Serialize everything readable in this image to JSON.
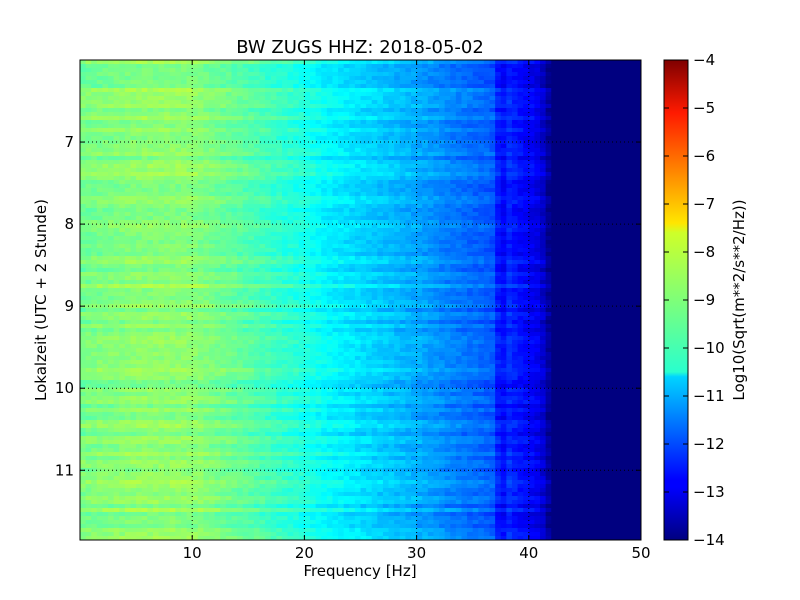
{
  "chart_data": {
    "type": "heatmap",
    "title": "BW ZUGS HHZ: 2018-05-02",
    "xlabel": "Frequency [Hz]",
    "ylabel": "Lokalzeit (UTC + 2 Stunde)",
    "colorbar_label": "Log10(Sqrt(m**2/s**2/Hz))",
    "xlim": [
      0,
      50
    ],
    "ylim": [
      6.0,
      11.85
    ],
    "y_inverted": true,
    "xticks": [
      10,
      20,
      30,
      40,
      50
    ],
    "yticks": [
      7,
      8,
      9,
      10,
      11
    ],
    "xtick_labels": [
      "10",
      "20",
      "30",
      "40",
      "50"
    ],
    "ytick_labels": [
      "7",
      "8",
      "9",
      "10",
      "11"
    ],
    "colorbar_ticks": [
      -4,
      -5,
      -6,
      -7,
      -8,
      -9,
      -10,
      -11,
      -12,
      -13,
      -14
    ],
    "colorbar_tick_labels": [
      "−4",
      "−5",
      "−6",
      "−7",
      "−8",
      "−9",
      "−10",
      "−11",
      "−12",
      "−13",
      "−14"
    ],
    "color_range": [
      -14,
      -4
    ],
    "colormap": "jet",
    "grid": true,
    "frequency_profile": {
      "x": [
        0,
        5,
        10,
        15,
        20,
        22,
        25,
        28,
        30,
        33,
        35,
        37,
        38,
        39,
        40,
        41,
        42,
        50
      ],
      "z": [
        -9.1,
        -8.9,
        -8.9,
        -9.4,
        -10.0,
        -10.3,
        -10.6,
        -10.9,
        -11.1,
        -11.5,
        -11.7,
        -11.9,
        -12.3,
        -12.6,
        -12.8,
        -13.0,
        -14.0,
        -14.0
      ]
    }
  }
}
